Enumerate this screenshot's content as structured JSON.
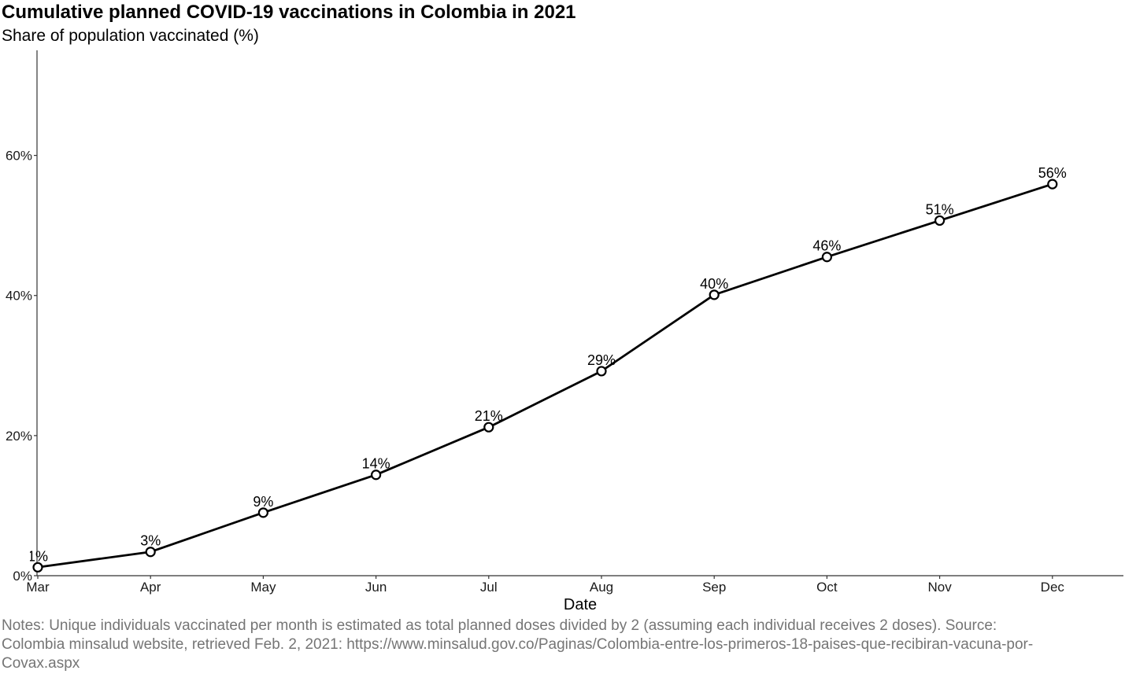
{
  "chart_data": {
    "type": "line",
    "title": "Cumulative planned COVID-19 vaccinations in Colombia in 2021",
    "subtitle": "Share of population vaccinated (%)",
    "xlabel": "Date",
    "ylabel": "",
    "categories": [
      "Mar",
      "Apr",
      "May",
      "Jun",
      "Jul",
      "Aug",
      "Sep",
      "Oct",
      "Nov",
      "Dec"
    ],
    "series": [
      {
        "values": [
          1.2,
          3.4,
          9.0,
          14.4,
          21.2,
          29.2,
          40.1,
          45.5,
          50.7,
          55.9
        ]
      }
    ],
    "data_labels": [
      "1%",
      "3%",
      "9%",
      "14%",
      "21%",
      "29%",
      "40%",
      "46%",
      "51%",
      "56%"
    ],
    "yticks": [
      0,
      20,
      40,
      60
    ],
    "ytick_labels": [
      "0%",
      "20%",
      "40%",
      "60%"
    ],
    "ylim": [
      0,
      75
    ],
    "grid": false,
    "legend": "none",
    "line_color": "#000000",
    "marker_fill": "#ffffff"
  },
  "notes": "Notes: Unique individuals vaccinated per month is estimated as total planned doses divided by 2 (assuming each individual receives 2 doses). Source: Colombia minsalud website, retrieved Feb. 2, 2021: https://www.minsalud.gov.co/Paginas/Colombia-entre-los-primeros-18-paises-que-recibiran-vacuna-por-Covax.aspx"
}
